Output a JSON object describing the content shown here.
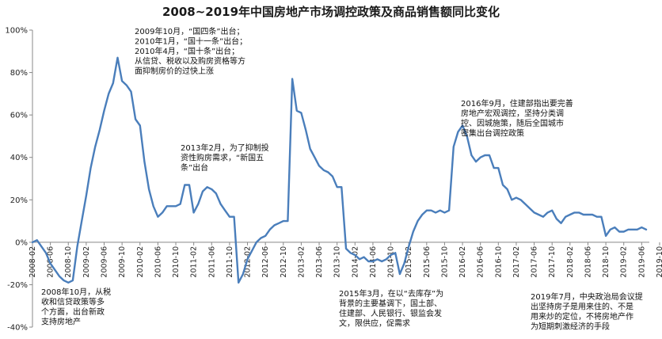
{
  "chart_data": {
    "type": "line",
    "title": "2008~2019年中国房地产市场调控政策及商品销售额同比变化",
    "xlabel": "",
    "ylabel": "",
    "ylim": [
      -40,
      100
    ],
    "y_ticks": [
      {
        "value": 100,
        "label": "100%"
      },
      {
        "value": 80,
        "label": "80%"
      },
      {
        "value": 60,
        "label": "60%"
      },
      {
        "value": 40,
        "label": "40%"
      },
      {
        "value": 20,
        "label": "20%"
      },
      {
        "value": 0,
        "label": "0%"
      },
      {
        "value": -20,
        "label": "-20%"
      },
      {
        "value": -40,
        "label": "-40%"
      }
    ],
    "x_tick_labels": [
      "2008-02",
      "2008-06",
      "2008-10",
      "2009-02",
      "2009-06",
      "2009-10",
      "2010-02",
      "2010-06",
      "2010-10",
      "2011-02",
      "2011-06",
      "2011-10",
      "2012-02",
      "2012-06",
      "2012-10",
      "2013-02",
      "2013-06",
      "2013-10",
      "2014-02",
      "2014-06",
      "2014-10",
      "2015-02",
      "2015-06",
      "2015-10",
      "2016-02",
      "2016-06",
      "2016-10",
      "2017-02",
      "2017-06",
      "2017-10",
      "2018-02",
      "2018-06",
      "2018-10",
      "2019-02",
      "2019-06",
      "2019-10"
    ],
    "x_start": "2008-02",
    "grid": false,
    "legend": "none",
    "line_color": "#4a7ebb",
    "series": [
      {
        "values": [
          0,
          1,
          -2,
          -5,
          -10,
          -13,
          -16,
          -18,
          -19,
          -18,
          -2,
          10,
          22,
          35,
          45,
          53,
          62,
          70,
          75,
          87,
          76,
          74,
          71,
          58,
          55,
          38,
          25,
          17,
          12,
          14,
          17,
          17,
          17,
          18,
          27,
          27,
          14,
          18,
          24,
          26,
          25,
          23,
          18,
          15,
          12,
          12,
          -19,
          -15,
          -8,
          -4,
          0,
          2,
          3,
          6,
          8,
          9,
          10,
          10,
          77,
          62,
          61,
          53,
          44,
          40,
          36,
          34,
          33,
          31,
          26,
          26,
          -3,
          -5,
          -6,
          -8,
          -7,
          -9,
          -9,
          -8,
          -9,
          -8,
          -6,
          -5,
          -15,
          -10,
          -2,
          5,
          10,
          13,
          15,
          15,
          14,
          15,
          14,
          15,
          45,
          52,
          55,
          50,
          41,
          38,
          40,
          41,
          41,
          35,
          35,
          27,
          25,
          20,
          21,
          20,
          18,
          16,
          14,
          13,
          12,
          14,
          15,
          11,
          9,
          12,
          13,
          14,
          14,
          13,
          13,
          13,
          12,
          12,
          3,
          6,
          7,
          5,
          5,
          6,
          6,
          6,
          7,
          6
        ]
      }
    ],
    "annotations": [
      {
        "lines": [
          "2009年10月，“国四条”出台；",
          "2010年1月，“国十一条”出台；",
          "2010年4月，“国十条”出台；",
          "从信贷、税收以及购房资格等方",
          "面抑制房价的过快上涨"
        ]
      },
      {
        "lines": [
          "2013年2月，为了抑制投",
          "资性购房需求，“新国五",
          "条”出台"
        ]
      },
      {
        "lines": [
          "2016年9月，住建部指出要完善",
          "房地产宏观调控，坚持分类调",
          "控、因城施策，随后全国城市",
          "密集出台调控政策"
        ]
      },
      {
        "lines": [
          "2008年10月，从税",
          "收和信贷政策等多",
          "个方面，出台新政",
          "支持房地产"
        ]
      },
      {
        "lines": [
          "2015年3月，在以“去库存”为",
          "背景的主要基调下，国土部、",
          "住建部、人民银行、银监会发",
          "文，限供应，促需求"
        ]
      },
      {
        "lines": [
          "2019年7月，中央政治局会议提",
          "出坚持房子是用来住的、不是",
          "用来炒的定位，不将房地产作",
          "为短期刺激经济的手段"
        ]
      }
    ]
  }
}
